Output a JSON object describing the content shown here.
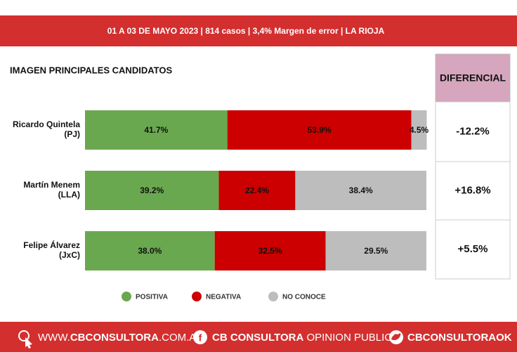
{
  "header": "01 A 03 DE MAYO 2023 | 814 casos  |  3,4% Margen de error  | LA RIOJA",
  "chart_data": {
    "type": "stacked-bar-horizontal",
    "title": "IMAGEN PRINCIPALES CANDIDATOS",
    "categories": [
      "Ricardo Quintela",
      "Martín Menem",
      "Felipe Álvarez"
    ],
    "parties": [
      "(PJ)",
      "(LLA)",
      "(JxC)"
    ],
    "xlim": [
      0,
      100
    ],
    "series": [
      {
        "name": "POSITIVA",
        "color": "#6aa84f",
        "values": [
          41.7,
          39.2,
          38.0
        ],
        "value_labels": [
          "41.7%",
          "39.2%",
          "38.0%"
        ]
      },
      {
        "name": "NEGATIVA",
        "color": "#cc0000",
        "values": [
          53.9,
          22.4,
          32.5
        ],
        "value_labels": [
          "53.9%",
          "22.4%",
          "32.5%"
        ]
      },
      {
        "name": "NO CONOCE",
        "color": "#bdbdbd",
        "values": [
          4.5,
          38.4,
          29.5
        ],
        "value_labels": [
          "4.5%",
          "38.4%",
          "29.5%"
        ]
      }
    ],
    "differential": {
      "title": "DIFERENCIAL",
      "values": [
        -12.2,
        16.8,
        5.5
      ],
      "value_labels": [
        "-12.2%",
        "+16.8%",
        "+5.5%"
      ]
    }
  },
  "footer": {
    "web": [
      "WWW.",
      "CBCONSULTORA",
      ".COM.AR"
    ],
    "facebook": [
      "CB CONSULTORA",
      " OPINION PUBLICA"
    ],
    "twitter": "CBCONSULTORAOK"
  }
}
